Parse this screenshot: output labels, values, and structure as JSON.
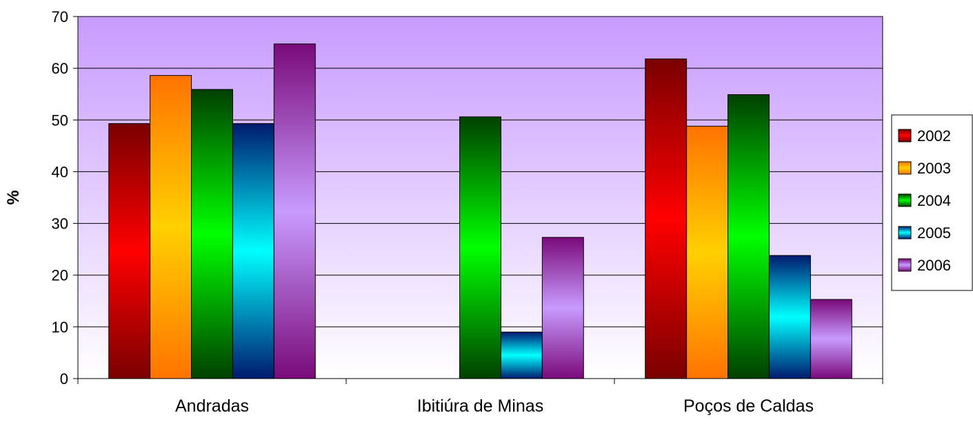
{
  "chart_data": {
    "type": "bar",
    "categories": [
      "Andradas",
      "Ibitiúra de Minas",
      "Poços de Caldas"
    ],
    "series": [
      {
        "name": "2002",
        "values": [
          49.3,
          null,
          61.8
        ],
        "colors": [
          "#7a0000",
          "#ff0000",
          "#7a0000"
        ]
      },
      {
        "name": "2003",
        "values": [
          58.6,
          null,
          48.8
        ],
        "colors": [
          "#ff7300",
          "#ffd000",
          "#ff7300"
        ]
      },
      {
        "name": "2004",
        "values": [
          55.9,
          50.6,
          54.9
        ],
        "colors": [
          "#004000",
          "#00ff00",
          "#004000"
        ]
      },
      {
        "name": "2005",
        "values": [
          49.3,
          9.0,
          23.8
        ],
        "colors": [
          "#001a6e",
          "#00ffff",
          "#001a6e"
        ]
      },
      {
        "name": "2006",
        "values": [
          64.7,
          27.3,
          15.3
        ],
        "colors": [
          "#7a0a7a",
          "#c89bff",
          "#7a0a7a"
        ]
      }
    ],
    "xlabel": "",
    "ylabel": "%",
    "ylim": [
      0,
      70
    ],
    "yticks": [
      "0",
      "10",
      "20",
      "30",
      "40",
      "50",
      "60",
      "70"
    ],
    "grid": true,
    "legend_position": "right",
    "background_gradient": [
      "#c89bff",
      "#ffffff"
    ]
  }
}
